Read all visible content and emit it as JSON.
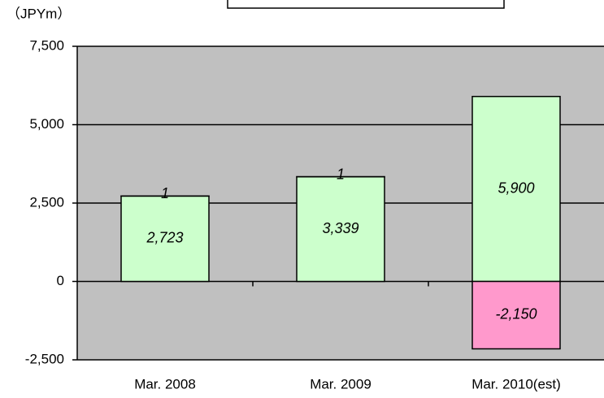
{
  "chart_data": {
    "type": "bar",
    "stacked": true,
    "y_axis_label": "（JPYm）",
    "categories": [
      "Mar. 2008",
      "Mar. 2009",
      "Mar. 2010(est)"
    ],
    "series": [
      {
        "color": "#ccffcc",
        "values": [
          2723,
          3339,
          5900
        ],
        "value_labels": [
          "2,723",
          "3,339",
          "5,900"
        ]
      },
      {
        "color": "#ff99cc",
        "values": [
          1,
          1,
          -2150
        ],
        "value_labels": [
          "1",
          "1",
          "-2,150"
        ]
      }
    ],
    "ylim": [
      -2500,
      7500
    ],
    "yticks": [
      {
        "value": -2500,
        "label": "-2,500"
      },
      0,
      {
        "value": 2500,
        "label": "2,500"
      },
      {
        "value": 5000,
        "label": "5,000"
      },
      {
        "value": 7500,
        "label": "7,500"
      }
    ],
    "grid": true,
    "plot_background": "#c0c0c0"
  }
}
